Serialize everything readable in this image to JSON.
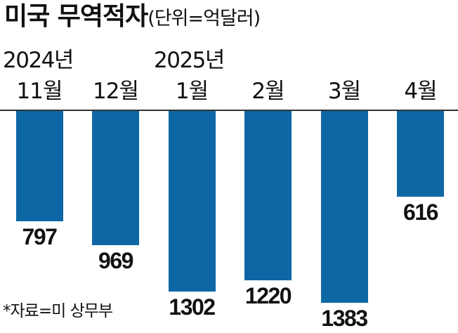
{
  "chart_data": {
    "type": "bar",
    "title": "미국 무역적자",
    "unit_note": "(단위=억달러)",
    "year_labels": [
      "2024년",
      "2025년"
    ],
    "categories": [
      "11월",
      "12월",
      "1월",
      "2월",
      "3월",
      "4월"
    ],
    "values": [
      797,
      969,
      1302,
      1220,
      1383,
      616
    ],
    "bar_color": "#0e67a5",
    "ylim": [
      0,
      1383
    ],
    "direction": "downward-from-baseline",
    "grid": false
  },
  "source": "*자료=미 상무부"
}
